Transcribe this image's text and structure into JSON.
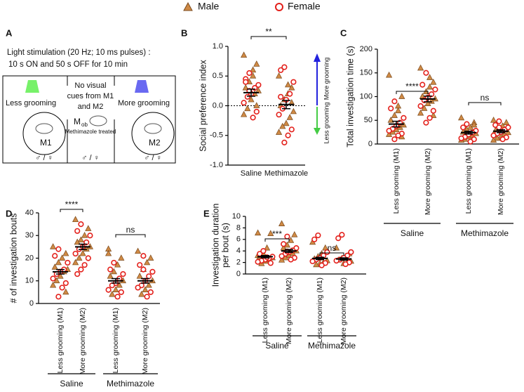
{
  "panel_a": {
    "label": "A",
    "stimulation": "Light stimulation (20 Hz; 10 ms pulses) :",
    "schedule": "10 s ON and 50 s OFF for 10 min",
    "left": "Less grooming",
    "right": "More grooming",
    "center": [
      "No visual",
      "cues from M1",
      "and M2"
    ],
    "mob": "M",
    "mob_sub": "ob",
    "treated": "Methimazole treated",
    "m1": "M1",
    "m2": "M2",
    "sexes": "♂ / ♀"
  },
  "chart_data": [
    {
      "type": "strip",
      "panel": "B",
      "ylabel": [
        "Social preference index"
      ],
      "categories": [
        "Saline",
        "Methimazole"
      ],
      "ylim": [
        -1,
        1
      ],
      "yticks": [
        {
          "value": -1,
          "label": "-1.0"
        },
        -0.5,
        {
          "value": 0,
          "label": "0.0"
        },
        0.5,
        {
          "value": 1,
          "label": "1.0"
        }
      ],
      "zero_line": true,
      "significance": [
        "**"
      ],
      "arrow_labels": {
        "up": "More grooming",
        "down": "Less grooming"
      },
      "mean": [
        0.22,
        0.02
      ],
      "sem": [
        0.06,
        0.07
      ],
      "series": [
        {
          "name": "Male",
          "marker": "triangle",
          "color": "#cf8a45",
          "values": [
            [
              0.85,
              0.7,
              0.5,
              0.4,
              0.3,
              0.25,
              0.2,
              0.1,
              -0.05,
              -0.15,
              0.0,
              0.6
            ],
            [
              0.5,
              0.3,
              0.2,
              0.1,
              0.0,
              -0.1,
              -0.2,
              -0.3,
              -0.35,
              -0.45,
              0.05,
              0.35
            ]
          ]
        },
        {
          "name": "Female",
          "marker": "circle",
          "color": "#e3201b",
          "values": [
            [
              0.55,
              0.45,
              0.35,
              0.3,
              0.2,
              0.15,
              0.05,
              -0.1,
              -0.2,
              0.25,
              0.4
            ],
            [
              0.65,
              0.6,
              0.4,
              0.2,
              0.1,
              -0.05,
              -0.15,
              -0.4,
              -0.5,
              -0.62,
              0.15
            ]
          ]
        }
      ]
    },
    {
      "type": "strip",
      "panel": "C",
      "ylabel": [
        "Total investigation time (s)"
      ],
      "categories": [
        "Less grooming (M1)",
        "More grooming (M2)",
        "Less grooming (M1)",
        "More grooming (M2)"
      ],
      "groups": [
        "Saline",
        "Methimazole"
      ],
      "ylim": [
        0,
        200
      ],
      "yticks": [
        0,
        50,
        100,
        150,
        200
      ],
      "significance": [
        "****",
        "ns"
      ],
      "mean": [
        42,
        95,
        24,
        27
      ],
      "sem": [
        6,
        6,
        3,
        3
      ],
      "series": [
        {
          "name": "Male",
          "marker": "triangle",
          "color": "#cf8a45",
          "values": [
            [
              145,
              100,
              80,
              60,
              50,
              40,
              35,
              30,
              25,
              20,
              15,
              70
            ],
            [
              160,
              130,
              120,
              110,
              100,
              95,
              90,
              85,
              75,
              65,
              60,
              140
            ],
            [
              55,
              45,
              35,
              30,
              25,
              22,
              18,
              15,
              10,
              8,
              40
            ],
            [
              50,
              45,
              38,
              32,
              28,
              24,
              20,
              15,
              12,
              8
            ]
          ]
        },
        {
          "name": "Female",
          "marker": "circle",
          "color": "#e3201b",
          "values": [
            [
              90,
              75,
              55,
              45,
              38,
              32,
              28,
              22,
              18,
              10
            ],
            [
              150,
              125,
              115,
              105,
              98,
              92,
              80,
              70,
              55,
              45
            ],
            [
              42,
              35,
              28,
              24,
              20,
              15,
              12,
              10,
              5
            ],
            [
              48,
              40,
              35,
              30,
              25,
              22,
              18,
              14,
              10,
              35
            ]
          ]
        }
      ]
    },
    {
      "type": "strip",
      "panel": "D",
      "ylabel": [
        "# of investigation bouts"
      ],
      "categories": [
        "Less grooming (M1)",
        "More grooming (M2)",
        "Less grooming (M1)",
        "More grooming (M2)"
      ],
      "groups": [
        "Saline",
        "Methimazole"
      ],
      "ylim": [
        0,
        40
      ],
      "yticks": [
        0,
        10,
        20,
        30,
        40
      ],
      "significance": [
        "****",
        "ns"
      ],
      "mean": [
        14,
        25,
        10,
        10
      ],
      "sem": [
        1,
        1.2,
        1,
        1
      ],
      "series": [
        {
          "name": "Male",
          "marker": "triangle",
          "color": "#cf8a45",
          "values": [
            [
              25,
              22,
              20,
              18,
              16,
              15,
              14,
              12,
              10,
              8,
              5
            ],
            [
              37,
              33,
              30,
              28,
              27,
              25,
              24,
              22,
              20,
              18
            ],
            [
              24,
              20,
              17,
              14,
              12,
              10,
              8,
              6,
              4,
              22
            ],
            [
              23,
              20,
              18,
              15,
              12,
              10,
              8,
              6,
              4
            ]
          ]
        },
        {
          "name": "Female",
          "marker": "circle",
          "color": "#e3201b",
          "values": [
            [
              24,
              21,
              18,
              15,
              14,
              13,
              11,
              9,
              7,
              3
            ],
            [
              35,
              32,
              30,
              27,
              25,
              24,
              22,
              20,
              17,
              15,
              13
            ],
            [
              18,
              15,
              13,
              11,
              9,
              8,
              6,
              5,
              3
            ],
            [
              21,
              17,
              14,
              12,
              10,
              8,
              7,
              5,
              3,
              15
            ]
          ]
        }
      ]
    },
    {
      "type": "strip",
      "panel": "E",
      "ylabel": [
        "Investigation duration",
        "per bout (s)"
      ],
      "categories": [
        "Less grooming (M1)",
        "More grooming (M2)",
        "Less grooming (M1)",
        "More grooming (M2)"
      ],
      "groups": [
        "Saline",
        "Methimazole"
      ],
      "ylim": [
        0,
        10
      ],
      "yticks": [
        0,
        2,
        4,
        6,
        8,
        10
      ],
      "significance": [
        "***",
        "ns"
      ],
      "mean": [
        3.0,
        4.0,
        2.7,
        2.6
      ],
      "sem": [
        0.2,
        0.25,
        0.2,
        0.2
      ],
      "series": [
        {
          "name": "Male",
          "marker": "triangle",
          "color": "#cf8a45",
          "values": [
            [
              7.1,
              7.0,
              4.5,
              3.5,
              3.0,
              2.8,
              2.5,
              2.2,
              1.8,
              3.2
            ],
            [
              8.7,
              6.8,
              5.8,
              5.0,
              4.5,
              4.0,
              3.6,
              3.2,
              2.8,
              2.4
            ],
            [
              5.5,
              4.5,
              3.5,
              3.0,
              2.6,
              2.3,
              2.0,
              1.8,
              1.6
            ],
            [
              4.5,
              3.5,
              3.0,
              2.7,
              2.4,
              2.2,
              2.0,
              1.8
            ]
          ]
        },
        {
          "name": "Female",
          "marker": "circle",
          "color": "#e3201b",
          "values": [
            [
              4.0,
              3.5,
              3.0,
              2.7,
              2.5,
              2.3,
              2.1,
              1.9,
              2.9
            ],
            [
              6.5,
              5.2,
              4.5,
              4.1,
              3.8,
              3.5,
              3.1,
              2.8,
              2.5,
              3.9
            ],
            [
              6.7,
              6.0,
              3.8,
              3.2,
              2.8,
              2.5,
              2.2,
              1.9,
              1.5
            ],
            [
              6.8,
              6.2,
              3.8,
              3.2,
              2.8,
              2.5,
              2.3,
              2.0,
              1.7
            ]
          ]
        }
      ]
    }
  ]
}
